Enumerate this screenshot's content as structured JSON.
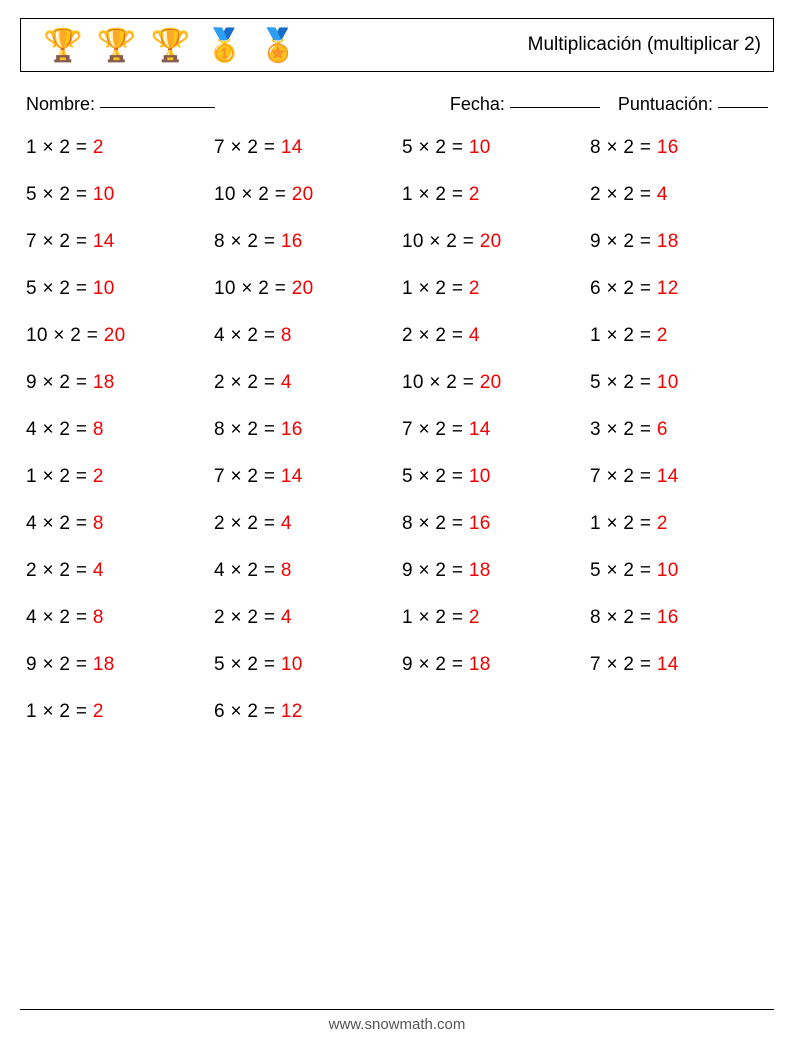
{
  "header": {
    "title": "Multiplicación (multiplicar 2)",
    "icons": [
      "trophy-gold-1",
      "trophy-gold-2",
      "trophy-gold-3",
      "medal-gold-1",
      "ribbon-medal"
    ]
  },
  "meta": {
    "name_label": "Nombre:",
    "date_label": "Fecha:",
    "score_label": "Puntuación:"
  },
  "worksheet": {
    "operator": "×",
    "multiplier": 2,
    "columns": 4,
    "rows": 13,
    "layout": "column-major: problems fill rows 0-12 in col 0, then col 1, then col 2 (12 rows), then col 3 (12 rows)",
    "text_color": "#000000",
    "answer_color": "#f00000",
    "font_size": 19,
    "problems": [
      {
        "a": 1,
        "b": 2,
        "ans": 2,
        "col": 0,
        "row": 0
      },
      {
        "a": 5,
        "b": 2,
        "ans": 10,
        "col": 0,
        "row": 1
      },
      {
        "a": 7,
        "b": 2,
        "ans": 14,
        "col": 0,
        "row": 2
      },
      {
        "a": 5,
        "b": 2,
        "ans": 10,
        "col": 0,
        "row": 3
      },
      {
        "a": 10,
        "b": 2,
        "ans": 20,
        "col": 0,
        "row": 4
      },
      {
        "a": 9,
        "b": 2,
        "ans": 18,
        "col": 0,
        "row": 5
      },
      {
        "a": 4,
        "b": 2,
        "ans": 8,
        "col": 0,
        "row": 6
      },
      {
        "a": 1,
        "b": 2,
        "ans": 2,
        "col": 0,
        "row": 7
      },
      {
        "a": 4,
        "b": 2,
        "ans": 8,
        "col": 0,
        "row": 8
      },
      {
        "a": 2,
        "b": 2,
        "ans": 4,
        "col": 0,
        "row": 9
      },
      {
        "a": 4,
        "b": 2,
        "ans": 8,
        "col": 0,
        "row": 10
      },
      {
        "a": 9,
        "b": 2,
        "ans": 18,
        "col": 0,
        "row": 11
      },
      {
        "a": 1,
        "b": 2,
        "ans": 2,
        "col": 0,
        "row": 12
      },
      {
        "a": 7,
        "b": 2,
        "ans": 14,
        "col": 1,
        "row": 0
      },
      {
        "a": 10,
        "b": 2,
        "ans": 20,
        "col": 1,
        "row": 1
      },
      {
        "a": 8,
        "b": 2,
        "ans": 16,
        "col": 1,
        "row": 2
      },
      {
        "a": 10,
        "b": 2,
        "ans": 20,
        "col": 1,
        "row": 3
      },
      {
        "a": 4,
        "b": 2,
        "ans": 8,
        "col": 1,
        "row": 4
      },
      {
        "a": 2,
        "b": 2,
        "ans": 4,
        "col": 1,
        "row": 5
      },
      {
        "a": 8,
        "b": 2,
        "ans": 16,
        "col": 1,
        "row": 6
      },
      {
        "a": 7,
        "b": 2,
        "ans": 14,
        "col": 1,
        "row": 7
      },
      {
        "a": 2,
        "b": 2,
        "ans": 4,
        "col": 1,
        "row": 8
      },
      {
        "a": 4,
        "b": 2,
        "ans": 8,
        "col": 1,
        "row": 9
      },
      {
        "a": 2,
        "b": 2,
        "ans": 4,
        "col": 1,
        "row": 10
      },
      {
        "a": 5,
        "b": 2,
        "ans": 10,
        "col": 1,
        "row": 11
      },
      {
        "a": 6,
        "b": 2,
        "ans": 12,
        "col": 1,
        "row": 12
      },
      {
        "a": 5,
        "b": 2,
        "ans": 10,
        "col": 2,
        "row": 0
      },
      {
        "a": 1,
        "b": 2,
        "ans": 2,
        "col": 2,
        "row": 1
      },
      {
        "a": 10,
        "b": 2,
        "ans": 20,
        "col": 2,
        "row": 2
      },
      {
        "a": 1,
        "b": 2,
        "ans": 2,
        "col": 2,
        "row": 3
      },
      {
        "a": 2,
        "b": 2,
        "ans": 4,
        "col": 2,
        "row": 4
      },
      {
        "a": 10,
        "b": 2,
        "ans": 20,
        "col": 2,
        "row": 5
      },
      {
        "a": 7,
        "b": 2,
        "ans": 14,
        "col": 2,
        "row": 6
      },
      {
        "a": 5,
        "b": 2,
        "ans": 10,
        "col": 2,
        "row": 7
      },
      {
        "a": 8,
        "b": 2,
        "ans": 16,
        "col": 2,
        "row": 8
      },
      {
        "a": 9,
        "b": 2,
        "ans": 18,
        "col": 2,
        "row": 9
      },
      {
        "a": 1,
        "b": 2,
        "ans": 2,
        "col": 2,
        "row": 10
      },
      {
        "a": 9,
        "b": 2,
        "ans": 18,
        "col": 2,
        "row": 11
      },
      {
        "a": 8,
        "b": 2,
        "ans": 16,
        "col": 3,
        "row": 0
      },
      {
        "a": 2,
        "b": 2,
        "ans": 4,
        "col": 3,
        "row": 1
      },
      {
        "a": 9,
        "b": 2,
        "ans": 18,
        "col": 3,
        "row": 2
      },
      {
        "a": 6,
        "b": 2,
        "ans": 12,
        "col": 3,
        "row": 3
      },
      {
        "a": 1,
        "b": 2,
        "ans": 2,
        "col": 3,
        "row": 4
      },
      {
        "a": 5,
        "b": 2,
        "ans": 10,
        "col": 3,
        "row": 5
      },
      {
        "a": 3,
        "b": 2,
        "ans": 6,
        "col": 3,
        "row": 6
      },
      {
        "a": 7,
        "b": 2,
        "ans": 14,
        "col": 3,
        "row": 7
      },
      {
        "a": 1,
        "b": 2,
        "ans": 2,
        "col": 3,
        "row": 8
      },
      {
        "a": 5,
        "b": 2,
        "ans": 10,
        "col": 3,
        "row": 9
      },
      {
        "a": 8,
        "b": 2,
        "ans": 16,
        "col": 3,
        "row": 10
      },
      {
        "a": 7,
        "b": 2,
        "ans": 14,
        "col": 3,
        "row": 11
      }
    ]
  },
  "footer": {
    "text": "www.snowmath.com"
  },
  "colors": {
    "background": "#ffffff",
    "text": "#000000",
    "answer": "#f00000",
    "border": "#000000",
    "footer_text": "#555555"
  }
}
